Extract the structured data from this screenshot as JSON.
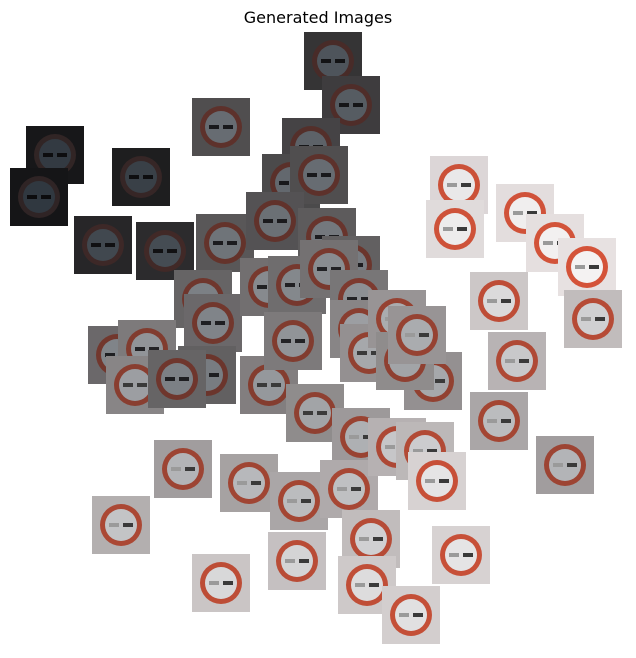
{
  "figure": {
    "title": "Generated Images"
  },
  "colors": {
    "background": "#ffffff",
    "sign_ring_red": "#d9553a",
    "sign_bar_dark": "#2a2a2a"
  },
  "thumbnails": [
    {
      "brightness": 0.18,
      "variant": "dark"
    },
    {
      "brightness": 0.22,
      "variant": "dark"
    },
    {
      "brightness": 0.3,
      "variant": "dark"
    },
    {
      "brightness": 0.05,
      "variant": "dark"
    },
    {
      "brightness": 0.04,
      "variant": "dark"
    },
    {
      "brightness": 0.08,
      "variant": "dark"
    },
    {
      "brightness": 0.12,
      "variant": "dark"
    },
    {
      "brightness": 0.14,
      "variant": "dark"
    },
    {
      "brightness": 0.25,
      "variant": "dark"
    },
    {
      "brightness": 0.28,
      "variant": "dark"
    },
    {
      "brightness": 0.3,
      "variant": "dark"
    },
    {
      "brightness": 0.34,
      "variant": "dark"
    },
    {
      "brightness": 0.32,
      "variant": "dark"
    },
    {
      "brightness": 0.36,
      "variant": "dark"
    },
    {
      "brightness": 0.38,
      "variant": "dark"
    },
    {
      "brightness": 0.4,
      "variant": "mid"
    },
    {
      "brightness": 0.42,
      "variant": "mid"
    },
    {
      "brightness": 0.45,
      "variant": "mid"
    },
    {
      "brightness": 0.44,
      "variant": "mid"
    },
    {
      "brightness": 0.46,
      "variant": "mid"
    },
    {
      "brightness": 0.48,
      "variant": "mid"
    },
    {
      "brightness": 0.42,
      "variant": "mid"
    },
    {
      "brightness": 0.5,
      "variant": "mid"
    },
    {
      "brightness": 0.55,
      "variant": "mid"
    },
    {
      "brightness": 0.38,
      "variant": "mid"
    },
    {
      "brightness": 0.4,
      "variant": "mid"
    },
    {
      "brightness": 0.52,
      "variant": "mid"
    },
    {
      "brightness": 0.5,
      "variant": "mid"
    },
    {
      "brightness": 0.58,
      "variant": "mid"
    },
    {
      "brightness": 0.55,
      "variant": "mid"
    },
    {
      "brightness": 0.6,
      "variant": "mid"
    },
    {
      "brightness": 0.62,
      "variant": "mid"
    },
    {
      "brightness": 0.64,
      "variant": "light"
    },
    {
      "brightness": 0.66,
      "variant": "light"
    },
    {
      "brightness": 0.68,
      "variant": "light"
    },
    {
      "brightness": 0.7,
      "variant": "light"
    },
    {
      "brightness": 0.72,
      "variant": "light"
    },
    {
      "brightness": 0.75,
      "variant": "light"
    },
    {
      "brightness": 0.78,
      "variant": "light"
    },
    {
      "brightness": 0.8,
      "variant": "light"
    },
    {
      "brightness": 0.82,
      "variant": "light"
    },
    {
      "brightness": 0.84,
      "variant": "light"
    },
    {
      "brightness": 0.86,
      "variant": "light"
    },
    {
      "brightness": 0.88,
      "variant": "light"
    },
    {
      "brightness": 0.9,
      "variant": "light"
    },
    {
      "brightness": 0.92,
      "variant": "light"
    },
    {
      "brightness": 0.94,
      "variant": "light"
    },
    {
      "brightness": 0.95,
      "variant": "light"
    },
    {
      "brightness": 0.96,
      "variant": "light"
    },
    {
      "brightness": 0.97,
      "variant": "light"
    },
    {
      "brightness": 0.85,
      "variant": "light"
    },
    {
      "brightness": 0.8,
      "variant": "light"
    },
    {
      "brightness": 0.76,
      "variant": "light"
    },
    {
      "brightness": 0.7,
      "variant": "light"
    },
    {
      "brightness": 0.66,
      "variant": "light"
    },
    {
      "brightness": 0.6,
      "variant": "mid"
    },
    {
      "brightness": 0.58,
      "variant": "mid"
    },
    {
      "brightness": 0.62,
      "variant": "mid"
    },
    {
      "brightness": 0.74,
      "variant": "light"
    },
    {
      "brightness": 0.9,
      "variant": "light"
    }
  ]
}
